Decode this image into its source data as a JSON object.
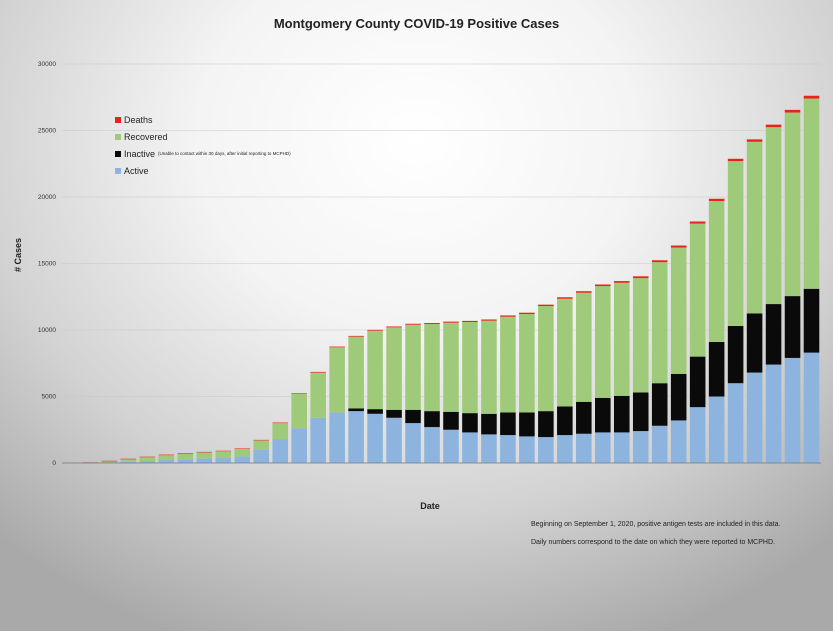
{
  "chart_data": {
    "type": "bar",
    "stacked": true,
    "title": "Montgomery County COVID-19 Positive Cases",
    "xlabel": "Date",
    "ylabel": "# Cases",
    "ylim": [
      0,
      30000
    ],
    "yticks": [
      0,
      5000,
      10000,
      15000,
      20000,
      25000,
      30000
    ],
    "grid": true,
    "legend_position": "top-left",
    "series": [
      {
        "name": "Deaths",
        "color": "#e8231c",
        "values": [
          0,
          2,
          5,
          8,
          12,
          18,
          22,
          26,
          30,
          34,
          38,
          42,
          46,
          50,
          54,
          58,
          62,
          65,
          70,
          75,
          80,
          85,
          90,
          95,
          100,
          105,
          110,
          116,
          122,
          128,
          135,
          142,
          150,
          158,
          166,
          174,
          182,
          190,
          200,
          212
        ]
      },
      {
        "name": "Recovered",
        "note": "",
        "color": "#9fca79",
        "values": [
          0,
          30,
          120,
          220,
          310,
          390,
          450,
          480,
          510,
          560,
          700,
          1200,
          2600,
          3400,
          4900,
          5400,
          5900,
          6200,
          6400,
          6550,
          6700,
          6850,
          7000,
          7200,
          7400,
          7900,
          8100,
          8200,
          8400,
          8500,
          8600,
          9100,
          9500,
          10000,
          10600,
          12400,
          12900,
          13300,
          13800,
          14300
        ]
      },
      {
        "name": "Inactive",
        "note": "(Unable to contact within 30 days, after initial reporting to MCPHD)",
        "color": "#0a0a0a",
        "values": [
          0,
          0,
          0,
          0,
          0,
          0,
          0,
          0,
          0,
          0,
          0,
          0,
          0,
          0,
          0,
          200,
          350,
          600,
          1000,
          1200,
          1350,
          1450,
          1550,
          1700,
          1800,
          1950,
          2150,
          2400,
          2600,
          2750,
          2900,
          3200,
          3500,
          3800,
          4100,
          4300,
          4450,
          4550,
          4650,
          4800
        ]
      },
      {
        "name": "Active",
        "color": "#8cb4de",
        "values": [
          0,
          10,
          40,
          90,
          150,
          220,
          280,
          330,
          380,
          500,
          1000,
          1800,
          2600,
          3400,
          3800,
          3900,
          3700,
          3400,
          3000,
          2700,
          2500,
          2300,
          2150,
          2100,
          2000,
          1950,
          2100,
          2200,
          2300,
          2300,
          2400,
          2800,
          3200,
          4200,
          5000,
          6000,
          6800,
          7400,
          7900,
          8300
        ]
      }
    ]
  },
  "notes": [
    "Beginning on September 1, 2020, positive antigen tests are included in this data.",
    "Daily numbers correspond to the date on which they were reported to MCPHD."
  ],
  "colors": {
    "grid": "#c8c8c8",
    "axis": "#777777"
  }
}
